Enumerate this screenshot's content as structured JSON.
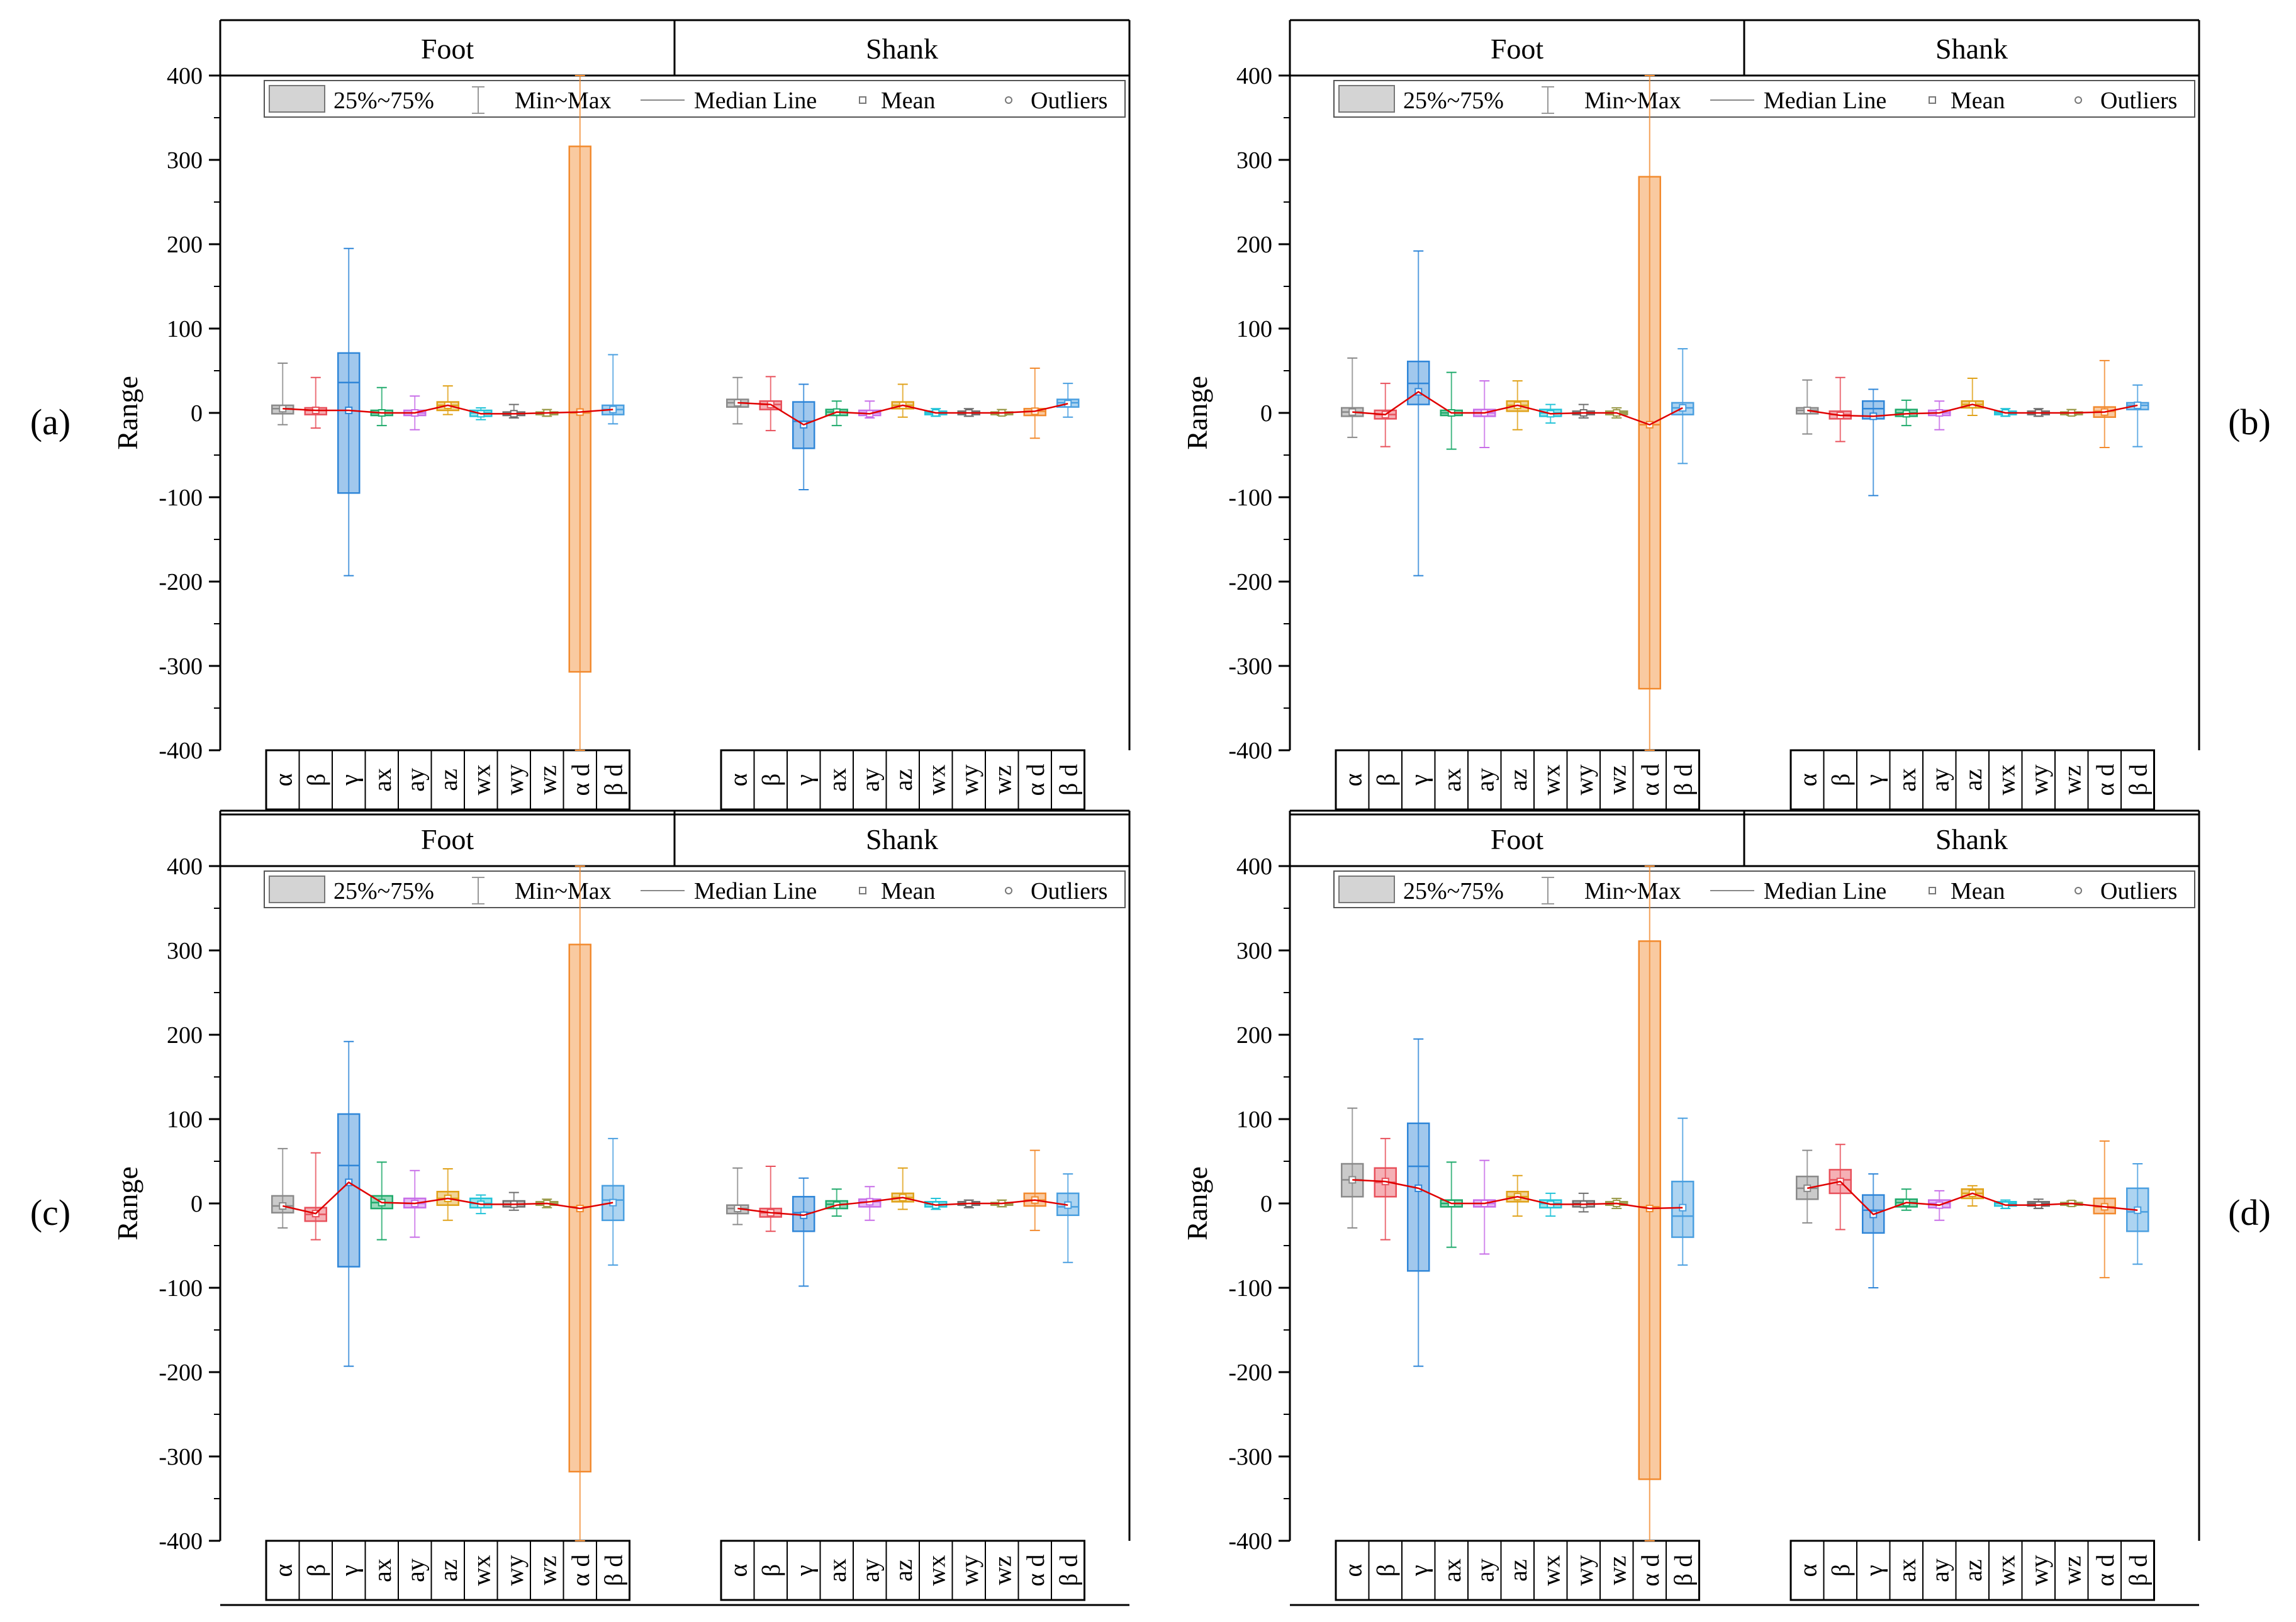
{
  "figure": {
    "description_labels": [
      "(a)",
      "(b)",
      "(c)",
      "(d)"
    ]
  },
  "legend": {
    "box_label": "25%~75%",
    "whisker_label": "Min~Max",
    "median_label": "Median Line",
    "mean_label": "Mean",
    "outlier_label": "Outliers"
  },
  "groups": [
    "Foot",
    "Shank"
  ],
  "variables": [
    "α",
    "β",
    "γ",
    "ax",
    "ay",
    "az",
    "wx",
    "wy",
    "wz",
    "α_d",
    "β_d"
  ],
  "colors": {
    "α": "#8a8a8a",
    "β": "#e8505b",
    "γ": "#2f86d8",
    "ax": "#1faa6b",
    "ay": "#c86ee8",
    "az": "#e0a21a",
    "wx": "#22c3d8",
    "wy": "#6e6e6e",
    "wz": "#9a9a4a",
    "α_d": "#f28a2e",
    "β_d": "#4a9fe0",
    "mean_line": "#e00000"
  },
  "chart_data": [
    {
      "type": "box",
      "panel_label": "(a)",
      "ylabel": "Range",
      "ylim": [
        -400,
        400
      ],
      "yticks": [
        -400,
        -300,
        -200,
        -100,
        0,
        100,
        200,
        300,
        400
      ],
      "categories": [
        "α",
        "β",
        "γ",
        "ax",
        "ay",
        "az",
        "wx",
        "wy",
        "wz",
        "α_d",
        "β_d"
      ],
      "series": [
        {
          "name": "Foot",
          "min": [
            -14,
            -18,
            -193,
            -15,
            -20,
            -2,
            -8,
            -6,
            -4,
            -400,
            -13
          ],
          "q1": [
            -1,
            -2,
            -95,
            -3,
            -3,
            3,
            -4,
            -3,
            -2,
            -307,
            -2
          ],
          "median": [
            5,
            3,
            36,
            0,
            0,
            9,
            0,
            -1,
            0,
            0,
            4
          ],
          "q3": [
            9,
            6,
            71,
            3,
            3,
            13,
            3,
            1,
            1,
            316,
            9
          ],
          "max": [
            59,
            42,
            195,
            30,
            20,
            32,
            6,
            10,
            4,
            400,
            69
          ],
          "mean": [
            5,
            3,
            3,
            0,
            0,
            9,
            -1,
            -1,
            0,
            1,
            4
          ]
        },
        {
          "name": "Shank",
          "min": [
            -13,
            -21,
            -91,
            -15,
            -6,
            -5,
            -4,
            -4,
            -3,
            -30,
            -5
          ],
          "q1": [
            7,
            4,
            -42,
            -3,
            -3,
            5,
            -2,
            -2,
            -1,
            -3,
            7
          ],
          "median": [
            12,
            10,
            -10,
            1,
            0,
            9,
            0,
            0,
            0,
            2,
            12
          ],
          "q3": [
            16,
            14,
            13,
            4,
            3,
            13,
            2,
            2,
            1,
            5,
            16
          ],
          "max": [
            42,
            43,
            34,
            14,
            14,
            34,
            5,
            5,
            4,
            53,
            35
          ],
          "mean": [
            12,
            10,
            -14,
            1,
            -1,
            9,
            0,
            0,
            0,
            2,
            11
          ]
        }
      ]
    },
    {
      "type": "box",
      "panel_label": "(b)",
      "ylabel": "Range",
      "ylim": [
        -400,
        400
      ],
      "yticks": [
        -400,
        -300,
        -200,
        -100,
        0,
        100,
        200,
        300,
        400
      ],
      "categories": [
        "α",
        "β",
        "γ",
        "ax",
        "ay",
        "az",
        "wx",
        "wy",
        "wz",
        "α_d",
        "β_d"
      ],
      "series": [
        {
          "name": "Foot",
          "min": [
            -29,
            -40,
            -193,
            -43,
            -41,
            -20,
            -12,
            -6,
            -6,
            -400,
            -60
          ],
          "q1": [
            -4,
            -7,
            10,
            -3,
            -4,
            2,
            -4,
            -2,
            -2,
            -327,
            -2
          ],
          "median": [
            1,
            -2,
            35,
            0,
            0,
            9,
            0,
            0,
            0,
            -14,
            6
          ],
          "q3": [
            6,
            3,
            61,
            3,
            4,
            14,
            4,
            2,
            2,
            280,
            12
          ],
          "max": [
            65,
            35,
            192,
            48,
            38,
            38,
            10,
            10,
            6,
            400,
            76
          ],
          "mean": [
            1,
            -2,
            25,
            0,
            0,
            9,
            -1,
            0,
            0,
            -14,
            6
          ]
        },
        {
          "name": "Shank",
          "min": [
            -25,
            -34,
            -98,
            -15,
            -20,
            -3,
            -4,
            -4,
            -3,
            -41,
            -40
          ],
          "q1": [
            -1,
            -7,
            -7,
            -4,
            -3,
            6,
            -2,
            -2,
            -1,
            -5,
            4
          ],
          "median": [
            3,
            -2,
            5,
            0,
            0,
            10,
            0,
            0,
            0,
            2,
            9
          ],
          "q3": [
            6,
            2,
            14,
            4,
            3,
            14,
            2,
            2,
            1,
            7,
            12
          ],
          "max": [
            39,
            42,
            28,
            15,
            14,
            41,
            5,
            5,
            4,
            62,
            33
          ],
          "mean": [
            3,
            -3,
            -4,
            -1,
            0,
            10,
            0,
            0,
            0,
            1,
            9
          ]
        }
      ]
    },
    {
      "type": "box",
      "panel_label": "(c)",
      "ylabel": "Range",
      "ylim": [
        -400,
        400
      ],
      "yticks": [
        -400,
        -300,
        -200,
        -100,
        0,
        100,
        200,
        300,
        400
      ],
      "categories": [
        "α",
        "β",
        "γ",
        "ax",
        "ay",
        "az",
        "wx",
        "wy",
        "wz",
        "α_d",
        "β_d"
      ],
      "series": [
        {
          "name": "Foot",
          "min": [
            -29,
            -43,
            -193,
            -43,
            -40,
            -20,
            -12,
            -8,
            -5,
            -400,
            -73
          ],
          "q1": [
            -11,
            -21,
            -75,
            -6,
            -5,
            -2,
            -5,
            -4,
            -2,
            -318,
            -20
          ],
          "median": [
            -3,
            -13,
            45,
            1,
            0,
            6,
            0,
            -1,
            0,
            -4,
            4
          ],
          "q3": [
            9,
            -5,
            106,
            9,
            6,
            14,
            6,
            3,
            2,
            307,
            21
          ],
          "max": [
            65,
            60,
            192,
            49,
            39,
            41,
            10,
            13,
            5,
            400,
            77
          ],
          "mean": [
            -3,
            -12,
            25,
            1,
            0,
            6,
            -1,
            -1,
            0,
            -6,
            1
          ]
        },
        {
          "name": "Shank",
          "min": [
            -25,
            -33,
            -98,
            -15,
            -20,
            -7,
            -7,
            -5,
            -4,
            -32,
            -70
          ],
          "q1": [
            -12,
            -16,
            -33,
            -6,
            -4,
            2,
            -4,
            -2,
            -1,
            -3,
            -14
          ],
          "median": [
            -6,
            -11,
            -11,
            -1,
            2,
            7,
            -1,
            0,
            0,
            4,
            -4
          ],
          "q3": [
            -2,
            -6,
            8,
            3,
            5,
            12,
            2,
            2,
            1,
            12,
            12
          ],
          "max": [
            42,
            44,
            30,
            17,
            20,
            42,
            6,
            4,
            4,
            63,
            35
          ],
          "mean": [
            -6,
            -11,
            -14,
            -2,
            2,
            7,
            -2,
            0,
            0,
            4,
            -2
          ]
        }
      ]
    },
    {
      "type": "box",
      "panel_label": "(d)",
      "ylabel": "Range",
      "ylim": [
        -400,
        400
      ],
      "yticks": [
        -400,
        -300,
        -200,
        -100,
        0,
        100,
        200,
        300,
        400
      ],
      "categories": [
        "α",
        "β",
        "γ",
        "ax",
        "ay",
        "az",
        "wx",
        "wy",
        "wz",
        "α_d",
        "β_d"
      ],
      "series": [
        {
          "name": "Foot",
          "min": [
            -29,
            -43,
            -193,
            -52,
            -60,
            -15,
            -15,
            -10,
            -6,
            -400,
            -73
          ],
          "q1": [
            8,
            8,
            -80,
            -4,
            -4,
            2,
            -5,
            -4,
            -2,
            -327,
            -40
          ],
          "median": [
            28,
            25,
            44,
            0,
            0,
            8,
            0,
            0,
            0,
            -4,
            -15
          ],
          "q3": [
            47,
            42,
            95,
            4,
            4,
            14,
            4,
            3,
            2,
            311,
            26
          ],
          "max": [
            113,
            77,
            195,
            49,
            51,
            33,
            12,
            12,
            6,
            400,
            101
          ],
          "mean": [
            28,
            26,
            18,
            0,
            0,
            8,
            -1,
            -1,
            0,
            -6,
            -5
          ]
        },
        {
          "name": "Shank",
          "min": [
            -23,
            -31,
            -100,
            -8,
            -20,
            -3,
            -6,
            -6,
            -3,
            -88,
            -72
          ],
          "q1": [
            5,
            12,
            -35,
            -4,
            -5,
            6,
            -3,
            -3,
            -1,
            -12,
            -33
          ],
          "median": [
            18,
            28,
            -8,
            1,
            0,
            12,
            0,
            0,
            0,
            -4,
            -10
          ],
          "q3": [
            32,
            40,
            10,
            5,
            4,
            17,
            2,
            2,
            1,
            6,
            18
          ],
          "max": [
            63,
            70,
            35,
            17,
            15,
            21,
            4,
            5,
            3,
            74,
            47
          ],
          "mean": [
            18,
            26,
            -13,
            1,
            -2,
            12,
            -2,
            -2,
            0,
            -4,
            -8
          ]
        }
      ]
    }
  ]
}
